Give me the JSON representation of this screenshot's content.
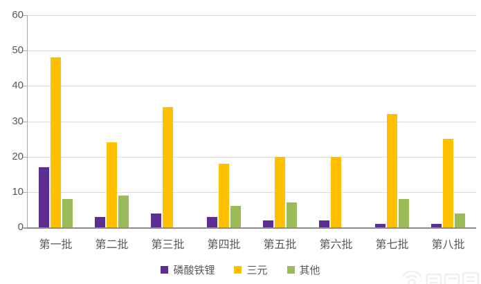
{
  "chart_data": {
    "type": "bar",
    "title": "",
    "xlabel": "",
    "ylabel": "",
    "categories": [
      "第一批",
      "第二批",
      "第三批",
      "第四批",
      "第五批",
      "第六批",
      "第七批",
      "第八批"
    ],
    "category_keys": [
      "batch1",
      "batch2",
      "batch3",
      "batch4",
      "batch5",
      "batch6",
      "batch7",
      "batch8"
    ],
    "series": [
      {
        "name": "磷酸铁锂",
        "key": "lfp",
        "color": "#5e2d91",
        "values": [
          17,
          3,
          4,
          3,
          2,
          2,
          1,
          1
        ]
      },
      {
        "name": "三元",
        "key": "ternary",
        "color": "#ffc000",
        "values": [
          48,
          24,
          34,
          18,
          20,
          20,
          32,
          25
        ]
      },
      {
        "name": "其他",
        "key": "other",
        "color": "#9bbb59",
        "values": [
          8,
          9,
          0,
          6,
          7,
          0,
          8,
          4
        ]
      }
    ],
    "ylim": [
      0,
      60
    ],
    "yticks": [
      0,
      10,
      20,
      30,
      40,
      50,
      60
    ],
    "grid": true,
    "legend_position": "bottom"
  },
  "style": {
    "grid_color": "#dcdcdc",
    "axis_color": "#a6a6a6",
    "baseline_color": "#8c8c8c",
    "text_color": "#595959",
    "background": "#ffffff"
  }
}
